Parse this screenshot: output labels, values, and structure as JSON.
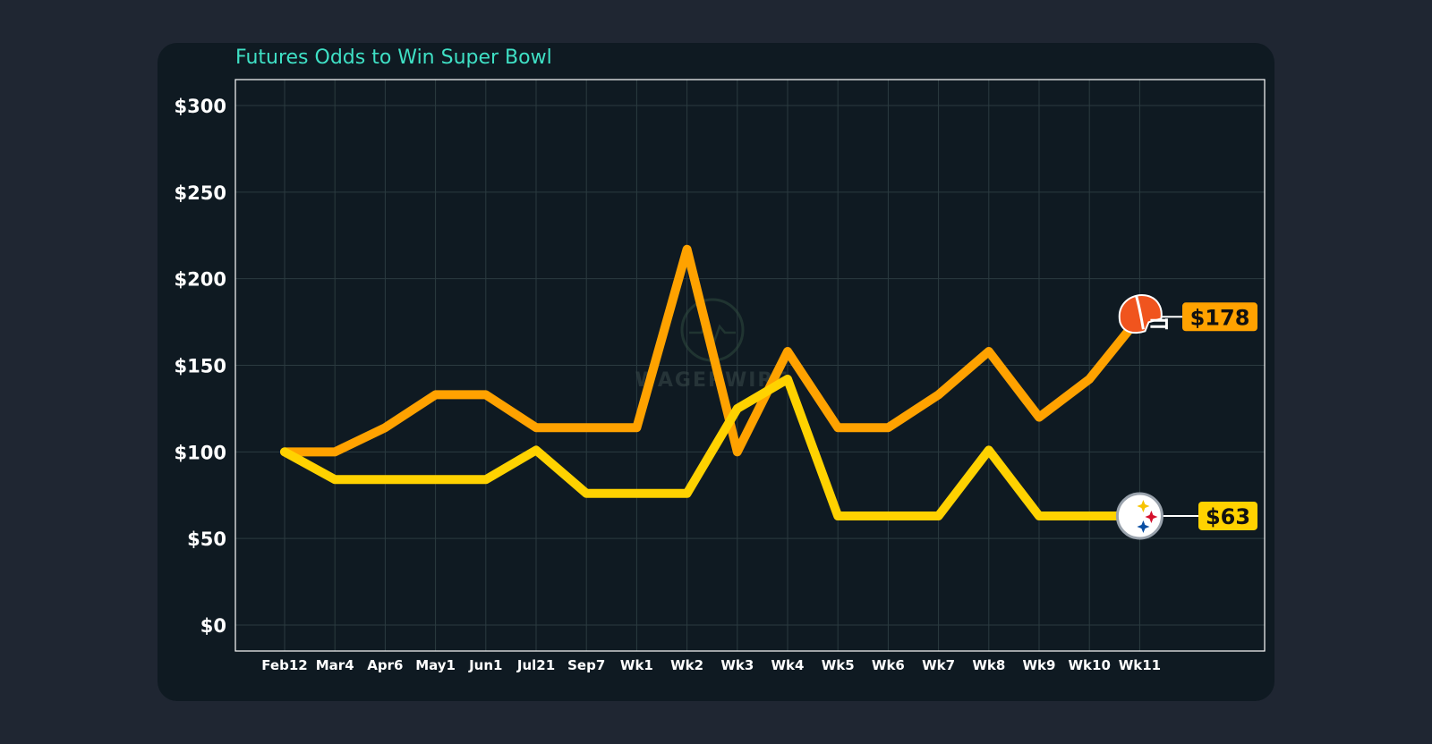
{
  "chart_data": {
    "type": "line",
    "title": "Futures Odds to Win Super Bowl",
    "categories": [
      "Feb12",
      "Mar4",
      "Apr6",
      "May1",
      "Jun1",
      "Jul21",
      "Sep7",
      "Wk1",
      "Wk2",
      "Wk3",
      "Wk4",
      "Wk5",
      "Wk6",
      "Wk7",
      "Wk8",
      "Wk9",
      "Wk10",
      "Wk11"
    ],
    "ylim": [
      -15,
      315
    ],
    "yticks": [
      0,
      50,
      100,
      150,
      200,
      250,
      300
    ],
    "ytick_labels": [
      "$0",
      "$50",
      "$100",
      "$150",
      "$200",
      "$250",
      "$300"
    ],
    "grid": true,
    "series": [
      {
        "team": "browns",
        "color": "#ffa200",
        "values": [
          100,
          100,
          114,
          133,
          133,
          114,
          114,
          114,
          217,
          100,
          158,
          114,
          114,
          133,
          158,
          120,
          142,
          178
        ],
        "end_label": "$178"
      },
      {
        "team": "steelers",
        "color": "#ffd200",
        "values": [
          100,
          84,
          84,
          84,
          84,
          101,
          76,
          76,
          76,
          125,
          142,
          63,
          63,
          63,
          101,
          63,
          63,
          63
        ],
        "end_label": "$63"
      }
    ],
    "watermark": "WAGERWIRE"
  },
  "icons": {
    "browns": "browns-helmet-icon",
    "steelers": "steelers-logo-icon",
    "watermark": "wagerwire-watermark-icon"
  },
  "colors": {
    "page_background": "#1f2632",
    "card_background": "#0f1a22",
    "title_color": "#3fe0c5",
    "grid_color": "#2b3b40",
    "browns_line": "#ffa200",
    "steelers_line": "#ffd200"
  }
}
